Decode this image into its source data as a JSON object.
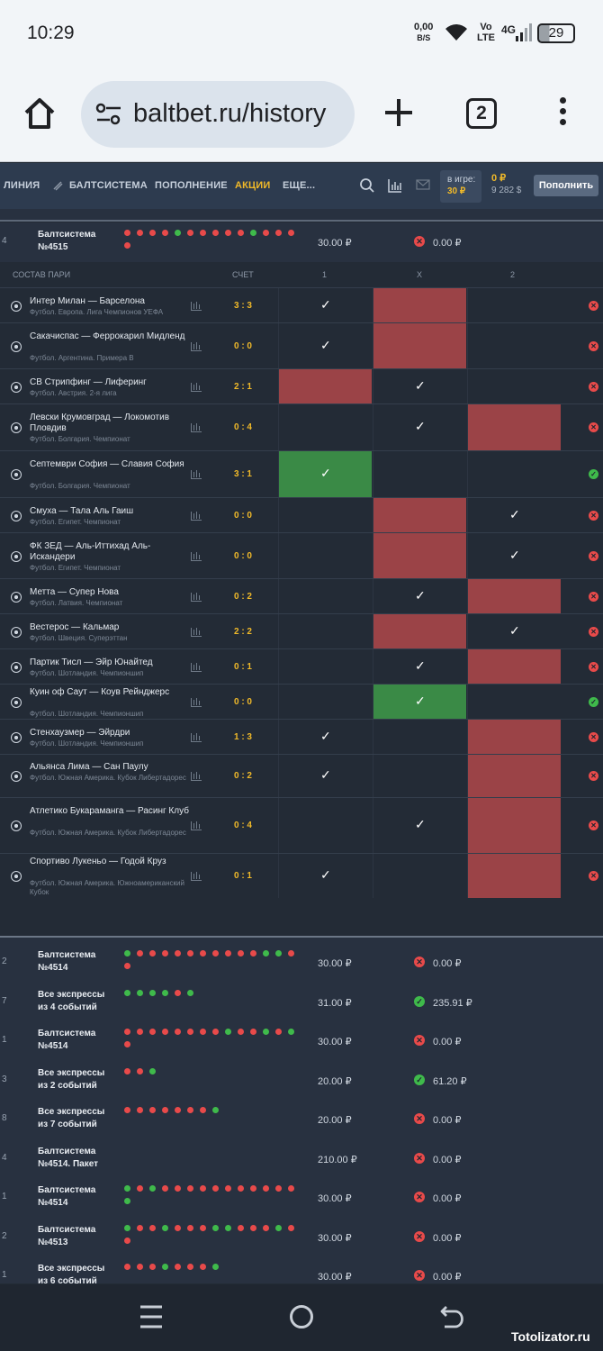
{
  "status_bar": {
    "time": "10:29",
    "net_speed": "0,00",
    "net_unit": "B/S",
    "volte_top": "Vo",
    "volte_bottom": "LTE",
    "network": "4G",
    "battery": "29"
  },
  "browser": {
    "url": "baltbet.ru/history",
    "tab_count": "2"
  },
  "site_nav": {
    "items": [
      "ЛИНИЯ",
      "БАЛТСИСТЕМА",
      "ПОПОЛНЕНИЕ",
      "АКЦИИ",
      "ЕЩЕ..."
    ],
    "in_game_label": "в игре:",
    "in_game_amount": "30 ₽",
    "balance_main": "0 ₽",
    "balance_bonus": "9 282 $",
    "topup_label": "Пополнить"
  },
  "expanded_bet": {
    "index": "4",
    "name": "Балтсистема\n№4515",
    "dots": [
      "r",
      "r",
      "r",
      "r",
      "g",
      "r",
      "r",
      "r",
      "r",
      "r",
      "g",
      "r",
      "r",
      "r",
      "r"
    ],
    "stake": "30.00 ₽",
    "result": "lose",
    "payout": "0.00 ₽"
  },
  "table": {
    "headers": {
      "composition": "СОСТАВ ПАРИ",
      "score": "СЧЕТ",
      "col1": "1",
      "colx": "X",
      "col2": "2"
    },
    "rows": [
      {
        "teams": "Интер Милан — Барселона",
        "league": "Футбол. Европа. Лига Чемпионов УЕФА",
        "score": "3 : 3",
        "cells": [
          "t",
          "r",
          ""
        ],
        "result": "lose"
      },
      {
        "teams": "Сакачиспас — Феррокарил Мидленд",
        "league": "Футбол. Аргентина. Примера B",
        "score": "0 : 0",
        "cells": [
          "t",
          "r",
          ""
        ],
        "result": "lose"
      },
      {
        "teams": "СВ Стрипфинг — Лиферинг",
        "league": "Футбол. Австрия. 2-я лига",
        "score": "2 : 1",
        "cells": [
          "r",
          "t",
          ""
        ],
        "result": "lose"
      },
      {
        "teams": "Левски Крумовград — Локомотив Пловдив",
        "league": "Футбол. Болгария. Чемпионат",
        "score": "0 : 4",
        "cells": [
          "",
          "t",
          "r"
        ],
        "result": "lose"
      },
      {
        "teams": "Септември София — Славия София",
        "league": "Футбол. Болгария. Чемпионат",
        "score": "3 : 1",
        "cells": [
          "g",
          "",
          ""
        ],
        "result": "win"
      },
      {
        "teams": "Смуха — Тала Аль Гаиш",
        "league": "Футбол. Египет. Чемпионат",
        "score": "0 : 0",
        "cells": [
          "",
          "r",
          "t"
        ],
        "result": "lose"
      },
      {
        "teams": "ФК ЗЕД — Аль-Иттихад Аль-Искандери",
        "league": "Футбол. Египет. Чемпионат",
        "score": "0 : 0",
        "cells": [
          "",
          "r",
          "t"
        ],
        "result": "lose"
      },
      {
        "teams": "Метта — Супер Нова",
        "league": "Футбол. Латвия. Чемпионат",
        "score": "0 : 2",
        "cells": [
          "",
          "t",
          "r"
        ],
        "result": "lose"
      },
      {
        "teams": "Вестерос — Кальмар",
        "league": "Футбол. Швеция. Суперэттан",
        "score": "2 : 2",
        "cells": [
          "",
          "r",
          "t"
        ],
        "result": "lose"
      },
      {
        "teams": "Партик Тисл — Эйр Юнайтед",
        "league": "Футбол. Шотландия. Чемпионшип",
        "score": "0 : 1",
        "cells": [
          "",
          "t",
          "r"
        ],
        "result": "lose"
      },
      {
        "teams": "Куин оф Саут — Коув Рейнджерс",
        "league": "Футбол. Шотландия. Чемпионшип",
        "score": "0 : 0",
        "cells": [
          "",
          "g",
          ""
        ],
        "result": "win"
      },
      {
        "teams": "Стенхаузмер — Эйрдри",
        "league": "Футбол. Шотландия. Чемпионшип",
        "score": "1 : 3",
        "cells": [
          "t",
          "",
          "r"
        ],
        "result": "lose"
      },
      {
        "teams": "Альянса Лима — Сан Паулу",
        "league": "Футбол. Южная Америка. Кубок Либертадорес",
        "score": "0 : 2",
        "cells": [
          "t",
          "",
          "r"
        ],
        "result": "lose"
      },
      {
        "teams": "Атлетико Букараманга — Расинг Клуб",
        "league": "Футбол. Южная Америка. Кубок Либертадорес",
        "score": "0 : 4",
        "cells": [
          "",
          "t",
          "r"
        ],
        "result": "lose"
      },
      {
        "teams": "Спортиво Лукеньо — Годой Круз",
        "league": "Футбол. Южная Америка. Южноамериканский Кубок",
        "score": "0 : 1",
        "cells": [
          "t",
          "",
          "r"
        ],
        "result": "lose"
      }
    ]
  },
  "bets": [
    {
      "index": "2",
      "name": "Балтсистема\n№4514",
      "dots": [
        "g",
        "r",
        "r",
        "r",
        "r",
        "r",
        "r",
        "r",
        "r",
        "r",
        "r",
        "g",
        "g",
        "r",
        "r"
      ],
      "stake": "30.00 ₽",
      "result": "lose",
      "payout": "0.00 ₽"
    },
    {
      "index": "7",
      "name": "Все экспрессы\nиз 4 событий",
      "dots": [
        "g",
        "g",
        "g",
        "g",
        "r",
        "g"
      ],
      "stake": "31.00 ₽",
      "result": "win",
      "payout": "235.91 ₽"
    },
    {
      "index": "1",
      "name": "Балтсистема\n№4514",
      "dots": [
        "r",
        "r",
        "r",
        "r",
        "r",
        "r",
        "r",
        "r",
        "g",
        "r",
        "r",
        "g",
        "r",
        "g",
        "r"
      ],
      "stake": "30.00 ₽",
      "result": "lose",
      "payout": "0.00 ₽"
    },
    {
      "index": "3",
      "name": "Все экспрессы\nиз 2 событий",
      "dots": [
        "r",
        "r",
        "g"
      ],
      "stake": "20.00 ₽",
      "result": "win",
      "payout": "61.20 ₽"
    },
    {
      "index": "8",
      "name": "Все экспрессы\nиз 7 событий",
      "dots": [
        "r",
        "r",
        "r",
        "r",
        "r",
        "r",
        "r",
        "g"
      ],
      "stake": "20.00 ₽",
      "result": "lose",
      "payout": "0.00 ₽"
    },
    {
      "index": "4",
      "name": "Балтсистема\n№4514. Пакет",
      "dots": [],
      "stake": "210.00 ₽",
      "result": "lose",
      "payout": "0.00 ₽"
    },
    {
      "index": "1",
      "name": "Балтсистема\n№4514",
      "dots": [
        "g",
        "r",
        "g",
        "r",
        "r",
        "r",
        "r",
        "r",
        "r",
        "r",
        "r",
        "r",
        "r",
        "r",
        "g"
      ],
      "stake": "30.00 ₽",
      "result": "lose",
      "payout": "0.00 ₽"
    },
    {
      "index": "2",
      "name": "Балтсистема\n№4513",
      "dots": [
        "g",
        "r",
        "r",
        "g",
        "r",
        "r",
        "r",
        "g",
        "g",
        "r",
        "r",
        "r",
        "g",
        "r",
        "r"
      ],
      "stake": "30.00 ₽",
      "result": "lose",
      "payout": "0.00 ₽"
    },
    {
      "index": "1",
      "name": "Все экспрессы\nиз 6 событий",
      "dots": [
        "r",
        "r",
        "r",
        "g",
        "r",
        "r",
        "r",
        "g"
      ],
      "stake": "30.00 ₽",
      "result": "lose",
      "payout": "0.00 ₽"
    }
  ],
  "watermark": "Totolizator.ru"
}
